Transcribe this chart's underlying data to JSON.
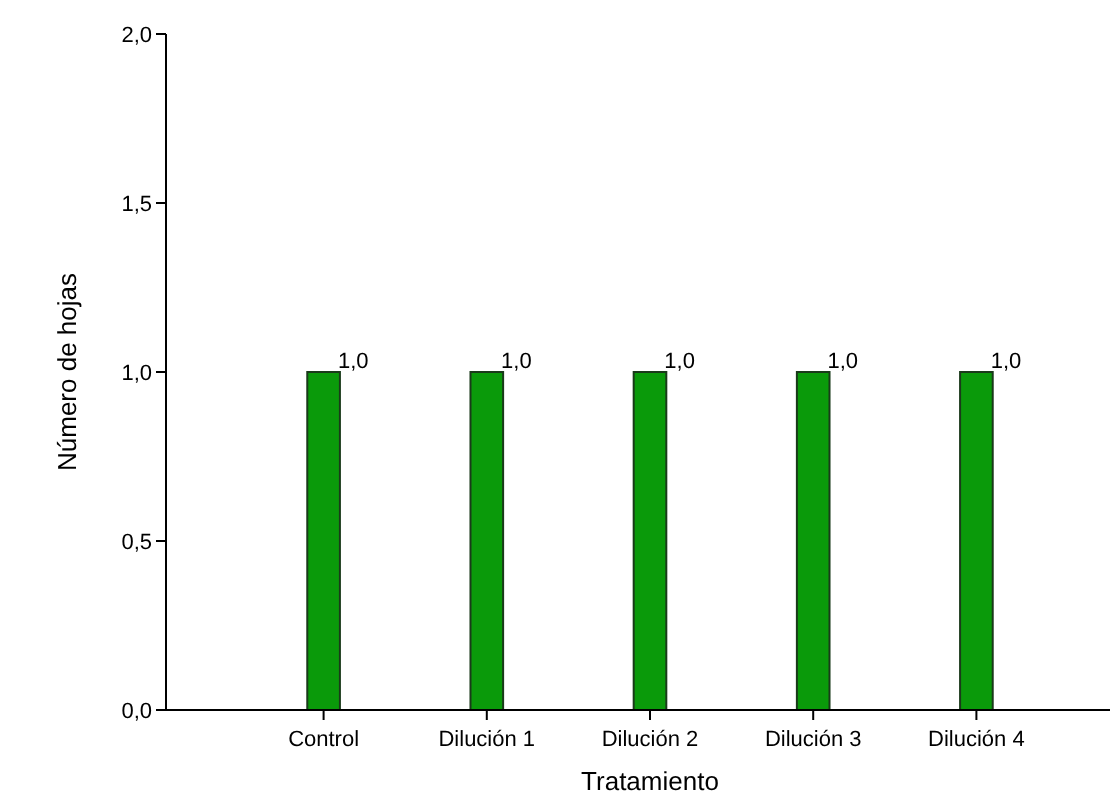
{
  "chart_data": {
    "type": "bar",
    "xlabel": "Tratamiento",
    "ylabel": "Número de hojas",
    "categories": [
      "Control",
      "Dilución 1",
      "Dilución 2",
      "Dilución 3",
      "Dilución 4"
    ],
    "values": [
      1.0,
      1.0,
      1.0,
      1.0,
      1.0
    ],
    "value_labels": [
      "1,0",
      "1,0",
      "1,0",
      "1,0",
      "1,0"
    ],
    "color": "#0a9a0a",
    "ylim": [
      0,
      2
    ],
    "yticks": [
      {
        "value": 0,
        "label": "0,0"
      },
      {
        "value": 0.5,
        "label": "0,5"
      },
      {
        "value": 1,
        "label": "1,0"
      },
      {
        "value": 1.5,
        "label": "1,5"
      },
      {
        "value": 2,
        "label": "2,0"
      }
    ],
    "grid": false
  }
}
